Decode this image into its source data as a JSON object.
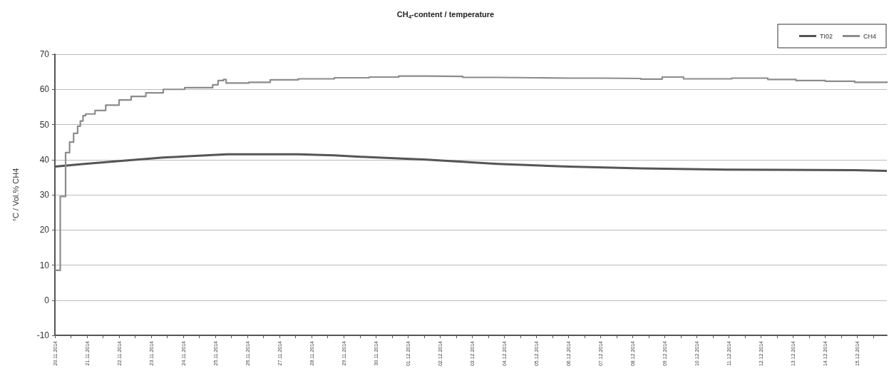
{
  "chart_data": {
    "type": "line",
    "title": "CH$_{4}$-content / temperature",
    "ylabel": "°C / Vol.% CH4",
    "xlim": [
      "2014-11-20T00:00",
      "2014-12-15T22:00"
    ],
    "xticks": [
      {
        "value": "2014-11-20",
        "label": "20.11.2014"
      },
      {
        "value": "2014-11-20T12:00",
        "label": null
      },
      {
        "value": "2014-11-21",
        "label": "21.11.2014"
      },
      {
        "value": "2014-11-21T12:00",
        "label": null
      },
      {
        "value": "2014-11-22",
        "label": "22.11.2014"
      },
      {
        "value": "2014-11-22T12:00",
        "label": null
      },
      {
        "value": "2014-11-23",
        "label": "23.11.2014"
      },
      {
        "value": "2014-11-23T12:00",
        "label": null
      },
      {
        "value": "2014-11-24",
        "label": "24.11.2014"
      },
      {
        "value": "2014-11-24T12:00",
        "label": null
      },
      {
        "value": "2014-11-25",
        "label": "25.11.2014"
      },
      {
        "value": "2014-11-25T12:00",
        "label": null
      },
      {
        "value": "2014-11-26",
        "label": "26.11.2014"
      },
      {
        "value": "2014-11-26T12:00",
        "label": null
      },
      {
        "value": "2014-11-27",
        "label": "27.11.2014"
      },
      {
        "value": "2014-11-27T12:00",
        "label": null
      },
      {
        "value": "2014-11-28",
        "label": "28.11.2014"
      },
      {
        "value": "2014-11-28T12:00",
        "label": null
      },
      {
        "value": "2014-11-29",
        "label": "29.11.2014"
      },
      {
        "value": "2014-11-29T12:00",
        "label": null
      },
      {
        "value": "2014-11-30",
        "label": "30.11.2014"
      },
      {
        "value": "2014-11-30T12:00",
        "label": null
      },
      {
        "value": "2014-12-01",
        "label": "01.12.2014"
      },
      {
        "value": "2014-12-01T12:00",
        "label": null
      },
      {
        "value": "2014-12-02",
        "label": "02.12.2014"
      },
      {
        "value": "2014-12-02T12:00",
        "label": null
      },
      {
        "value": "2014-12-03",
        "label": "03.12.2014"
      },
      {
        "value": "2014-12-03T12:00",
        "label": null
      },
      {
        "value": "2014-12-04",
        "label": "04.12.2014"
      },
      {
        "value": "2014-12-04T12:00",
        "label": null
      },
      {
        "value": "2014-12-05",
        "label": "05.12.2014"
      },
      {
        "value": "2014-12-05T12:00",
        "label": null
      },
      {
        "value": "2014-12-06",
        "label": "06.12.2014"
      },
      {
        "value": "2014-12-06T12:00",
        "label": null
      },
      {
        "value": "2014-12-07",
        "label": "07.12.2014"
      },
      {
        "value": "2014-12-07T12:00",
        "label": null
      },
      {
        "value": "2014-12-08",
        "label": "08.12.2014"
      },
      {
        "value": "2014-12-08T12:00",
        "label": null
      },
      {
        "value": "2014-12-09",
        "label": "09.12.2014"
      },
      {
        "value": "2014-12-09T12:00",
        "label": null
      },
      {
        "value": "2014-12-10",
        "label": "10.12.2014"
      },
      {
        "value": "2014-12-10T12:00",
        "label": null
      },
      {
        "value": "2014-12-11",
        "label": "11.12.2014"
      },
      {
        "value": "2014-12-11T12:00",
        "label": null
      },
      {
        "value": "2014-12-12",
        "label": "12.12.2014"
      },
      {
        "value": "2014-12-12T12:00",
        "label": null
      },
      {
        "value": "2014-12-13",
        "label": "13.12.2014"
      },
      {
        "value": "2014-12-13T12:00",
        "label": null
      },
      {
        "value": "2014-12-14",
        "label": "14.12.2014"
      },
      {
        "value": "2014-12-14T12:00",
        "label": null
      },
      {
        "value": "2014-12-15",
        "label": "15.12.2014"
      },
      {
        "value": "2014-12-15T12:00",
        "label": null
      }
    ],
    "ylim": [
      -10,
      70
    ],
    "yticks": [
      -10,
      0,
      10,
      20,
      30,
      40,
      50,
      60,
      70
    ],
    "grid": "y",
    "legend": "top right",
    "marker": "none",
    "line_style": "solid",
    "series": [
      {
        "name": "TI02",
        "color": "#555555",
        "x": [
          "2014-11-20T00:00",
          "2014-11-20T22:00",
          "2014-11-22T00:00",
          "2014-11-23T09:00",
          "2014-11-24T22:00",
          "2014-11-25T09:00",
          "2014-11-27T14:00",
          "2014-11-28T17:00",
          "2014-11-29T19:00",
          "2014-12-01T14:00",
          "2014-12-03T19:00",
          "2014-12-06T00:00",
          "2014-12-08T06:00",
          "2014-12-10T12:00",
          "2014-12-12T10:00",
          "2014-12-14T22:00",
          "2014-12-15T22:00"
        ],
        "values": [
          38,
          38.8,
          39.6,
          40.6,
          41.3,
          41.5,
          41.5,
          41.2,
          40.7,
          40,
          38.8,
          38,
          37.5,
          37.2,
          37.1,
          37,
          36.8
        ]
      },
      {
        "name": "CH4",
        "color": "#8c8c8c",
        "type": "step",
        "x": [
          "2014-11-20T00:00",
          "2014-11-20T04:00",
          "2014-11-20T08:00",
          "2014-11-20T11:00",
          "2014-11-20T14:00",
          "2014-11-20T17:00",
          "2014-11-20T19:00",
          "2014-11-20T21:00",
          "2014-11-20T23:00",
          "2014-11-21T06:00",
          "2014-11-21T14:00",
          "2014-11-22T00:00",
          "2014-11-22T09:00",
          "2014-11-22T20:00",
          "2014-11-23T09:00",
          "2014-11-24T01:00",
          "2014-11-24T22:00",
          "2014-11-25T02:00",
          "2014-11-25T06:00",
          "2014-11-25T08:00",
          "2014-11-26T01:00",
          "2014-11-26T17:00",
          "2014-11-27T14:00",
          "2014-11-28T17:00",
          "2014-11-29T19:00",
          "2014-11-30T17:00",
          "2014-12-01T14:00",
          "2014-12-02T17:00",
          "2014-12-03T19:00",
          "2014-12-04T22:00",
          "2014-12-06T00:00",
          "2014-12-07T02:00",
          "2014-12-08T06:00",
          "2014-12-08T22:00",
          "2014-12-09T14:00",
          "2014-12-10T12:00",
          "2014-12-11T02:00",
          "2014-12-12T05:00",
          "2014-12-13T02:00",
          "2014-12-14T00:00",
          "2014-12-14T22:00",
          "2014-12-15T22:00"
        ],
        "values": [
          8.5,
          29.5,
          42,
          45,
          47.5,
          49.5,
          51,
          52.5,
          53,
          54,
          55.5,
          57,
          58,
          59,
          60,
          60.5,
          61.3,
          62.5,
          62.8,
          61.8,
          62,
          62.7,
          63,
          63.3,
          63.5,
          63.8,
          63.7,
          63.4,
          63.3,
          63.2,
          63.2,
          63.1,
          62.9,
          63.5,
          63,
          63,
          63.2,
          62.8,
          62.5,
          62.3,
          62,
          62.3
        ]
      }
    ]
  }
}
